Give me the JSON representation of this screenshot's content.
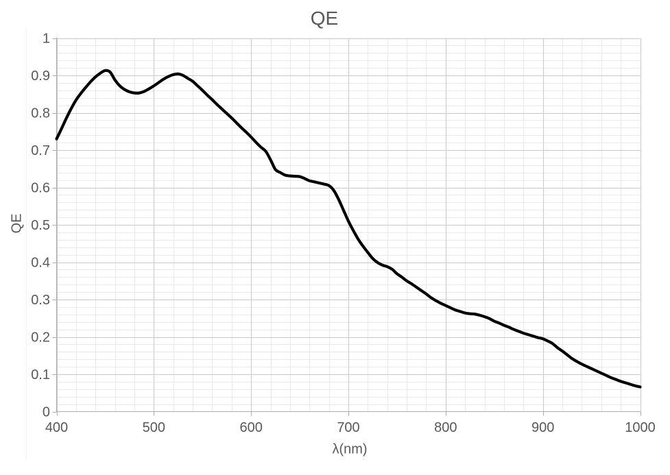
{
  "colors": {
    "background": "#ffffff",
    "text": "#595959",
    "major_grid": "#c9c9c9",
    "minor_grid": "#eaeaea",
    "axis_line": "#adadad",
    "series": "#000000"
  },
  "chart_data": {
    "type": "line",
    "title": "QE",
    "xlabel": "λ(nm)",
    "ylabel": "QE",
    "xlim": [
      400,
      1000
    ],
    "ylim": [
      0,
      1
    ],
    "x_tick_values": [
      400,
      500,
      600,
      700,
      800,
      900,
      1000
    ],
    "x_tick_labels": [
      "400",
      "500",
      "600",
      "700",
      "800",
      "900",
      "1000"
    ],
    "y_tick_values": [
      0,
      0.1,
      0.2,
      0.3,
      0.4,
      0.5,
      0.6,
      0.7,
      0.8,
      0.9,
      1
    ],
    "y_tick_labels": [
      "0",
      "0.1",
      "0.2",
      "0.3",
      "0.4",
      "0.5",
      "0.6",
      "0.7",
      "0.8",
      "0.9",
      "1"
    ],
    "x_minor_step": 20,
    "y_minor_step": 0.02,
    "grid": "major and minor gridlines on both axes",
    "legend": "none",
    "series": [
      {
        "name": "QE",
        "smooth": true,
        "color": "#000000",
        "stroke_width": 4.2,
        "points": [
          [
            400,
            0.73
          ],
          [
            405,
            0.757
          ],
          [
            410,
            0.785
          ],
          [
            415,
            0.811
          ],
          [
            420,
            0.834
          ],
          [
            425,
            0.852
          ],
          [
            430,
            0.868
          ],
          [
            435,
            0.883
          ],
          [
            440,
            0.896
          ],
          [
            445,
            0.906
          ],
          [
            450,
            0.913
          ],
          [
            455,
            0.909
          ],
          [
            460,
            0.888
          ],
          [
            465,
            0.872
          ],
          [
            470,
            0.862
          ],
          [
            475,
            0.856
          ],
          [
            480,
            0.853
          ],
          [
            485,
            0.853
          ],
          [
            490,
            0.857
          ],
          [
            495,
            0.864
          ],
          [
            500,
            0.872
          ],
          [
            505,
            0.881
          ],
          [
            510,
            0.89
          ],
          [
            515,
            0.897
          ],
          [
            520,
            0.902
          ],
          [
            525,
            0.904
          ],
          [
            530,
            0.9
          ],
          [
            535,
            0.892
          ],
          [
            540,
            0.884
          ],
          [
            545,
            0.872
          ],
          [
            550,
            0.86
          ],
          [
            555,
            0.847
          ],
          [
            560,
            0.835
          ],
          [
            565,
            0.822
          ],
          [
            570,
            0.81
          ],
          [
            575,
            0.798
          ],
          [
            580,
            0.786
          ],
          [
            585,
            0.773
          ],
          [
            590,
            0.76
          ],
          [
            595,
            0.748
          ],
          [
            600,
            0.735
          ],
          [
            605,
            0.721
          ],
          [
            610,
            0.708
          ],
          [
            615,
            0.697
          ],
          [
            620,
            0.674
          ],
          [
            625,
            0.648
          ],
          [
            630,
            0.64
          ],
          [
            635,
            0.633
          ],
          [
            640,
            0.631
          ],
          [
            645,
            0.63
          ],
          [
            650,
            0.629
          ],
          [
            655,
            0.624
          ],
          [
            660,
            0.618
          ],
          [
            665,
            0.615
          ],
          [
            670,
            0.612
          ],
          [
            675,
            0.609
          ],
          [
            680,
            0.605
          ],
          [
            685,
            0.592
          ],
          [
            690,
            0.568
          ],
          [
            695,
            0.539
          ],
          [
            700,
            0.51
          ],
          [
            705,
            0.485
          ],
          [
            710,
            0.462
          ],
          [
            715,
            0.443
          ],
          [
            720,
            0.426
          ],
          [
            725,
            0.41
          ],
          [
            730,
            0.399
          ],
          [
            735,
            0.392
          ],
          [
            740,
            0.388
          ],
          [
            745,
            0.381
          ],
          [
            750,
            0.369
          ],
          [
            755,
            0.36
          ],
          [
            760,
            0.35
          ],
          [
            765,
            0.342
          ],
          [
            770,
            0.333
          ],
          [
            775,
            0.324
          ],
          [
            780,
            0.315
          ],
          [
            785,
            0.305
          ],
          [
            790,
            0.297
          ],
          [
            795,
            0.29
          ],
          [
            800,
            0.284
          ],
          [
            805,
            0.278
          ],
          [
            810,
            0.272
          ],
          [
            815,
            0.268
          ],
          [
            820,
            0.264
          ],
          [
            825,
            0.262
          ],
          [
            830,
            0.261
          ],
          [
            835,
            0.258
          ],
          [
            840,
            0.254
          ],
          [
            845,
            0.249
          ],
          [
            850,
            0.242
          ],
          [
            855,
            0.237
          ],
          [
            860,
            0.231
          ],
          [
            865,
            0.226
          ],
          [
            870,
            0.22
          ],
          [
            875,
            0.215
          ],
          [
            880,
            0.21
          ],
          [
            885,
            0.206
          ],
          [
            890,
            0.202
          ],
          [
            895,
            0.198
          ],
          [
            900,
            0.195
          ],
          [
            905,
            0.189
          ],
          [
            910,
            0.182
          ],
          [
            915,
            0.171
          ],
          [
            920,
            0.162
          ],
          [
            925,
            0.152
          ],
          [
            930,
            0.142
          ],
          [
            935,
            0.134
          ],
          [
            940,
            0.127
          ],
          [
            945,
            0.121
          ],
          [
            950,
            0.115
          ],
          [
            955,
            0.109
          ],
          [
            960,
            0.103
          ],
          [
            965,
            0.097
          ],
          [
            970,
            0.091
          ],
          [
            975,
            0.086
          ],
          [
            980,
            0.081
          ],
          [
            985,
            0.077
          ],
          [
            990,
            0.073
          ],
          [
            995,
            0.069
          ],
          [
            1000,
            0.066
          ]
        ]
      }
    ]
  }
}
